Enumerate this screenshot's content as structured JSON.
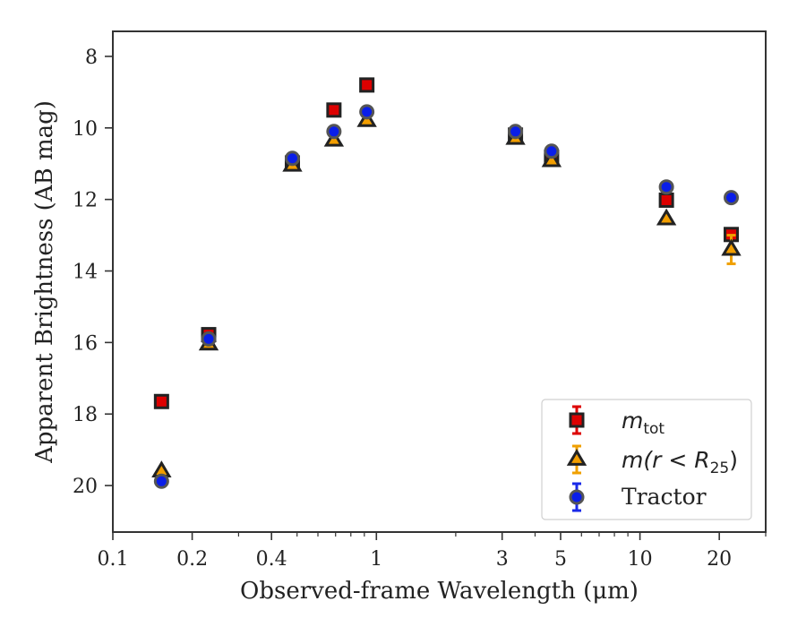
{
  "chart_data": {
    "type": "scatter",
    "xlabel": "Observed-frame Wavelength (μm)",
    "ylabel": "Apparent Brightness (AB mag)",
    "xscale": "log",
    "xlim": [
      0.1,
      30
    ],
    "ylim": [
      21.3,
      7.3
    ],
    "y_inverted": true,
    "x_major_ticks": [
      {
        "value": 0.1,
        "label": "0.1"
      },
      {
        "value": 0.2,
        "label": "0.2"
      },
      {
        "value": 0.4,
        "label": "0.4"
      },
      {
        "value": 1,
        "label": "1"
      },
      {
        "value": 3,
        "label": "3"
      },
      {
        "value": 5,
        "label": "5"
      },
      {
        "value": 10,
        "label": "10"
      },
      {
        "value": 20,
        "label": "20"
      }
    ],
    "x_minor_ticks": [
      0.3,
      0.5,
      0.6,
      0.7,
      0.8,
      0.9,
      2,
      4,
      6,
      7,
      8,
      9,
      30
    ],
    "y_ticks": [
      {
        "value": 8,
        "label": "8"
      },
      {
        "value": 10,
        "label": "10"
      },
      {
        "value": 12,
        "label": "12"
      },
      {
        "value": 14,
        "label": "14"
      },
      {
        "value": 16,
        "label": "16"
      },
      {
        "value": 18,
        "label": "18"
      },
      {
        "value": 20,
        "label": "20"
      }
    ],
    "legend_position": "lower-right",
    "series": [
      {
        "key": "mtot",
        "label_main": "m",
        "label_sub": "tot",
        "marker": "square",
        "fill": "#dd0000",
        "edge": "#222222",
        "errcolor": "#dd0000",
        "points": [
          {
            "x": 0.153,
            "y": 17.65,
            "err": 0
          },
          {
            "x": 0.231,
            "y": 15.78,
            "err": 0
          },
          {
            "x": 0.48,
            "y": 10.98,
            "err": 0
          },
          {
            "x": 0.69,
            "y": 9.5,
            "err": 0
          },
          {
            "x": 0.92,
            "y": 8.8,
            "err": 0
          },
          {
            "x": 3.37,
            "y": 10.2,
            "err": 0
          },
          {
            "x": 4.62,
            "y": 10.82,
            "err": 0
          },
          {
            "x": 12.6,
            "y": 12.02,
            "err": 0
          },
          {
            "x": 22.2,
            "y": 12.98,
            "err": 0
          }
        ]
      },
      {
        "key": "mr25",
        "label_main": "m(r < R",
        "label_sub": "25",
        "label_tail": ")",
        "marker": "triangle",
        "fill": "#f29e00",
        "edge": "#222222",
        "errcolor": "#f0a000",
        "points": [
          {
            "x": 0.153,
            "y": 19.6,
            "err": 0
          },
          {
            "x": 0.231,
            "y": 16.05,
            "err": 0
          },
          {
            "x": 0.48,
            "y": 11.05,
            "err": 0
          },
          {
            "x": 0.69,
            "y": 10.35,
            "err": 0
          },
          {
            "x": 0.92,
            "y": 9.8,
            "err": 0
          },
          {
            "x": 3.37,
            "y": 10.3,
            "err": 0
          },
          {
            "x": 4.62,
            "y": 10.92,
            "err": 0
          },
          {
            "x": 12.6,
            "y": 12.55,
            "err": 0
          },
          {
            "x": 22.2,
            "y": 13.4,
            "err": 0.4
          }
        ]
      },
      {
        "key": "tractor",
        "label_main": "Tractor",
        "marker": "circle",
        "fill": "#0a1ee8",
        "edge": "#555555",
        "errcolor": "#1a2ae8",
        "points": [
          {
            "x": 0.153,
            "y": 19.88,
            "err": 0
          },
          {
            "x": 0.231,
            "y": 15.9,
            "err": 0
          },
          {
            "x": 0.48,
            "y": 10.85,
            "err": 0
          },
          {
            "x": 0.69,
            "y": 10.1,
            "err": 0
          },
          {
            "x": 0.92,
            "y": 9.55,
            "err": 0
          },
          {
            "x": 3.37,
            "y": 10.1,
            "err": 0
          },
          {
            "x": 4.62,
            "y": 10.65,
            "err": 0
          },
          {
            "x": 12.6,
            "y": 11.65,
            "err": 0
          },
          {
            "x": 22.2,
            "y": 11.95,
            "err": 0
          }
        ]
      }
    ]
  }
}
